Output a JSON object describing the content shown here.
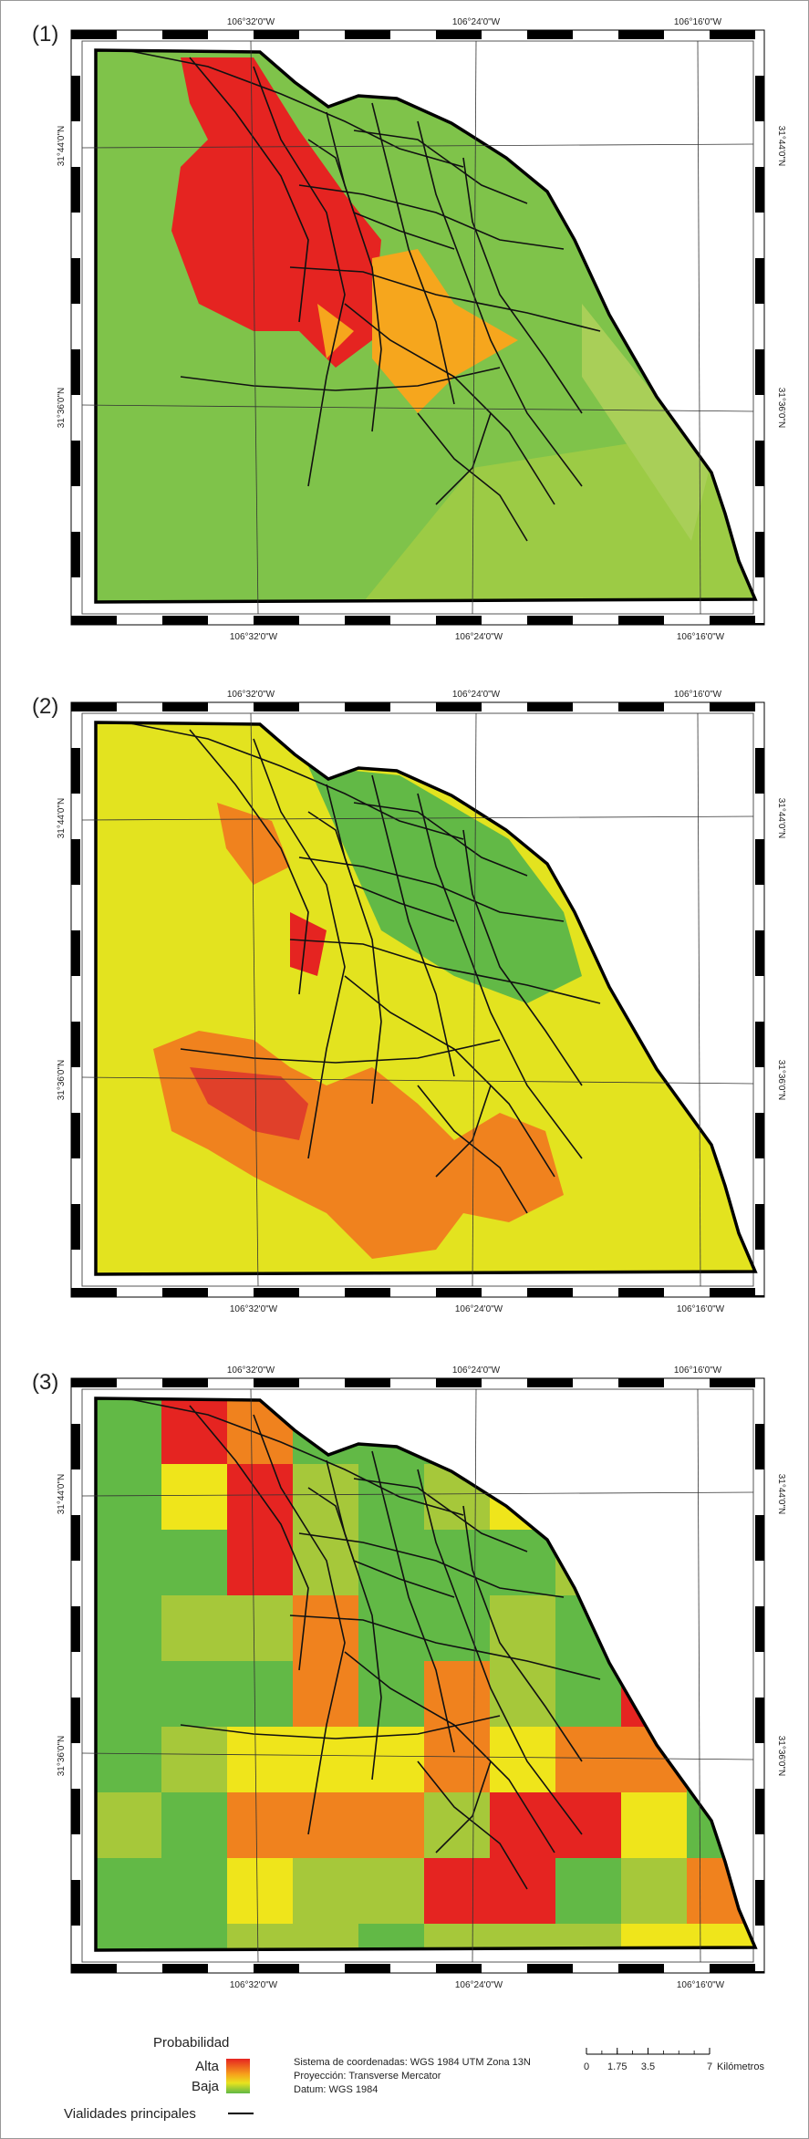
{
  "panels": [
    {
      "label": "(1)",
      "top_labels": [
        "106°32'0\"W",
        "106°24'0\"W",
        "106°16'0\"W"
      ],
      "bottom_labels": [
        "106°32'0\"W",
        "106°24'0\"W",
        "106°16'0\"W"
      ],
      "left_labels": [
        "31°44'0\"N",
        "31°36'0\"N"
      ],
      "right_labels": [
        "31°44'0\"N",
        "31°36'0\"N"
      ]
    },
    {
      "label": "(2)",
      "top_labels": [
        "106°32'0\"W",
        "106°24'0\"W",
        "106°16'0\"W"
      ],
      "bottom_labels": [
        "106°32'0\"W",
        "106°24'0\"W",
        "106°16'0\"W"
      ],
      "left_labels": [
        "31°44'0\"N",
        "31°36'0\"N"
      ],
      "right_labels": [
        "31°44'0\"N",
        "31°36'0\"N"
      ]
    },
    {
      "label": "(3)",
      "top_labels": [
        "106°32'0\"W",
        "106°24'0\"W",
        "106°16'0\"W"
      ],
      "bottom_labels": [
        "106°32'0\"W",
        "106°24'0\"W",
        "106°16'0\"W"
      ],
      "left_labels": [
        "31°44'0\"N",
        "31°36'0\"N"
      ],
      "right_labels": [
        "31°44'0\"N",
        "31°36'0\"N"
      ]
    }
  ],
  "legend": {
    "title": "Probabilidad",
    "high": "Alta",
    "low": "Baja",
    "roads": "Vialidades principales"
  },
  "info": [
    "Sistema de coordenadas: WGS 1984 UTM Zona 13N",
    "Proyección: Transverse Mercator",
    "Datum: WGS 1984"
  ],
  "scale": {
    "ticks": [
      0,
      1.75,
      3.5,
      7
    ],
    "unit": "Kilómetros"
  }
}
